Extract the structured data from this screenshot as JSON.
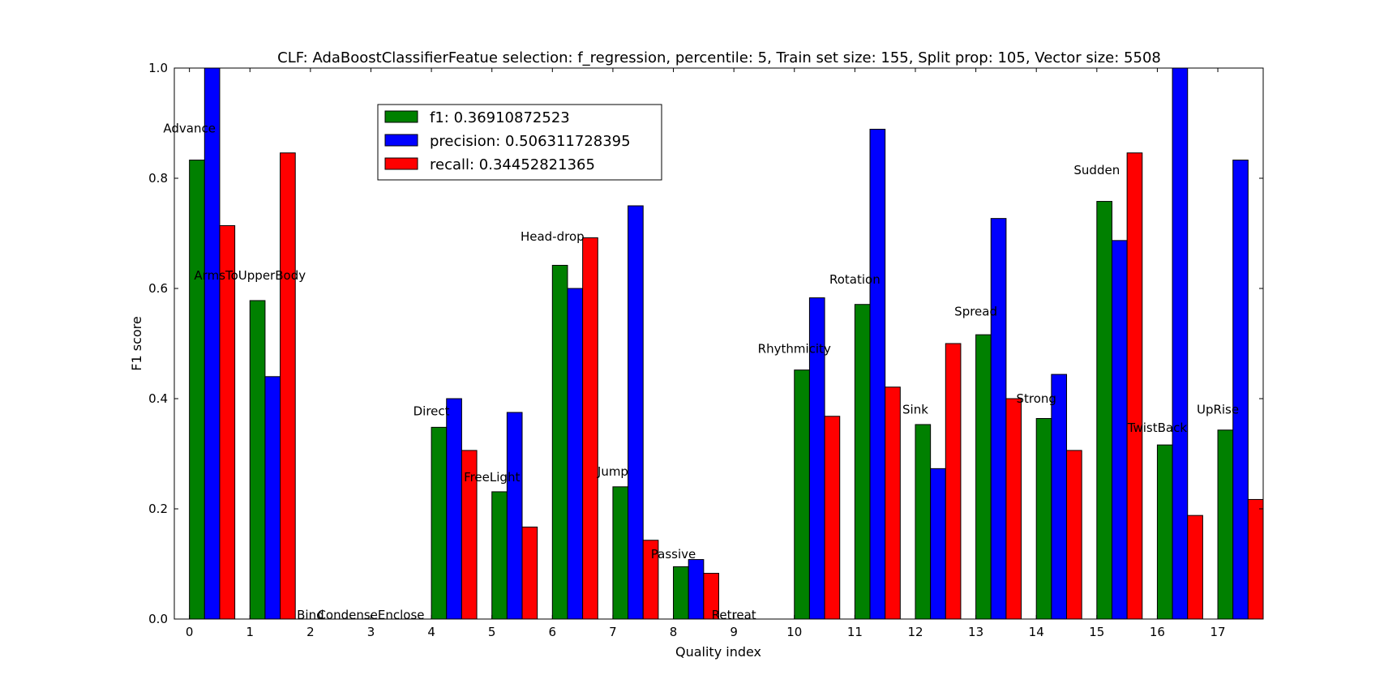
{
  "chart_data": {
    "type": "bar",
    "title": "CLF: AdaBoostClassifierFeatue selection: f_regression, percentile: 5, Train set size: 155, Split prop: 105, Vector size: 5508",
    "xlabel": "Quality index",
    "ylabel": "F1 score",
    "xlim": [
      -0.25,
      17.75
    ],
    "ylim": [
      0,
      1.0
    ],
    "grid": false,
    "legend_position": "upper-center",
    "categories": [
      "0",
      "1",
      "2",
      "3",
      "4",
      "5",
      "6",
      "7",
      "8",
      "9",
      "10",
      "11",
      "12",
      "13",
      "14",
      "15",
      "16",
      "17"
    ],
    "yticks": [
      "0.0",
      "0.2",
      "0.4",
      "0.6",
      "0.8",
      "1.0"
    ],
    "series": [
      {
        "name": "f1: 0.36910872523",
        "color": "#008000",
        "values": [
          0.833,
          0.578,
          0,
          0,
          0.348,
          0.231,
          0.642,
          0.24,
          0.095,
          0,
          0.452,
          0.571,
          0.353,
          0.516,
          0.364,
          0.758,
          0.316,
          0.343
        ]
      },
      {
        "name": "precision: 0.506311728395",
        "color": "#0000ff",
        "values": [
          1.0,
          0.44,
          0,
          0,
          0.4,
          0.375,
          0.6,
          0.75,
          0.108,
          0,
          0.583,
          0.889,
          0.273,
          0.727,
          0.444,
          0.687,
          1.0,
          0.833
        ]
      },
      {
        "name": "recall: 0.34452821365",
        "color": "#ff0000",
        "values": [
          0.714,
          0.846,
          0,
          0,
          0.306,
          0.167,
          0.692,
          0.143,
          0.083,
          0,
          0.368,
          0.421,
          0.5,
          0.4,
          0.306,
          0.846,
          0.188,
          0.217
        ]
      }
    ],
    "annotations": [
      {
        "text": "Advance",
        "x": 0,
        "y": 0.883
      },
      {
        "text": "ArmsToUpperBody",
        "x": 1,
        "y": 0.616
      },
      {
        "text": "Bind",
        "x": 2,
        "y": 0
      },
      {
        "text": "CondenseEnclose",
        "x": 3,
        "y": 0
      },
      {
        "text": "Direct",
        "x": 4,
        "y": 0.37
      },
      {
        "text": "FreeLight",
        "x": 5,
        "y": 0.25
      },
      {
        "text": "Head-drop",
        "x": 6,
        "y": 0.687
      },
      {
        "text": "Jump",
        "x": 7,
        "y": 0.26
      },
      {
        "text": "Passive",
        "x": 8,
        "y": 0.11
      },
      {
        "text": "Retreat",
        "x": 9,
        "y": 0
      },
      {
        "text": "Rhythmicity",
        "x": 10,
        "y": 0.483
      },
      {
        "text": "Rotation",
        "x": 11,
        "y": 0.609
      },
      {
        "text": "Sink",
        "x": 12,
        "y": 0.373
      },
      {
        "text": "Spread",
        "x": 13,
        "y": 0.551
      },
      {
        "text": "Strong",
        "x": 14,
        "y": 0.393
      },
      {
        "text": "Sudden",
        "x": 15,
        "y": 0.807
      },
      {
        "text": "TwistBack",
        "x": 16,
        "y": 0.34
      },
      {
        "text": "UpRise",
        "x": 17,
        "y": 0.373
      }
    ]
  }
}
